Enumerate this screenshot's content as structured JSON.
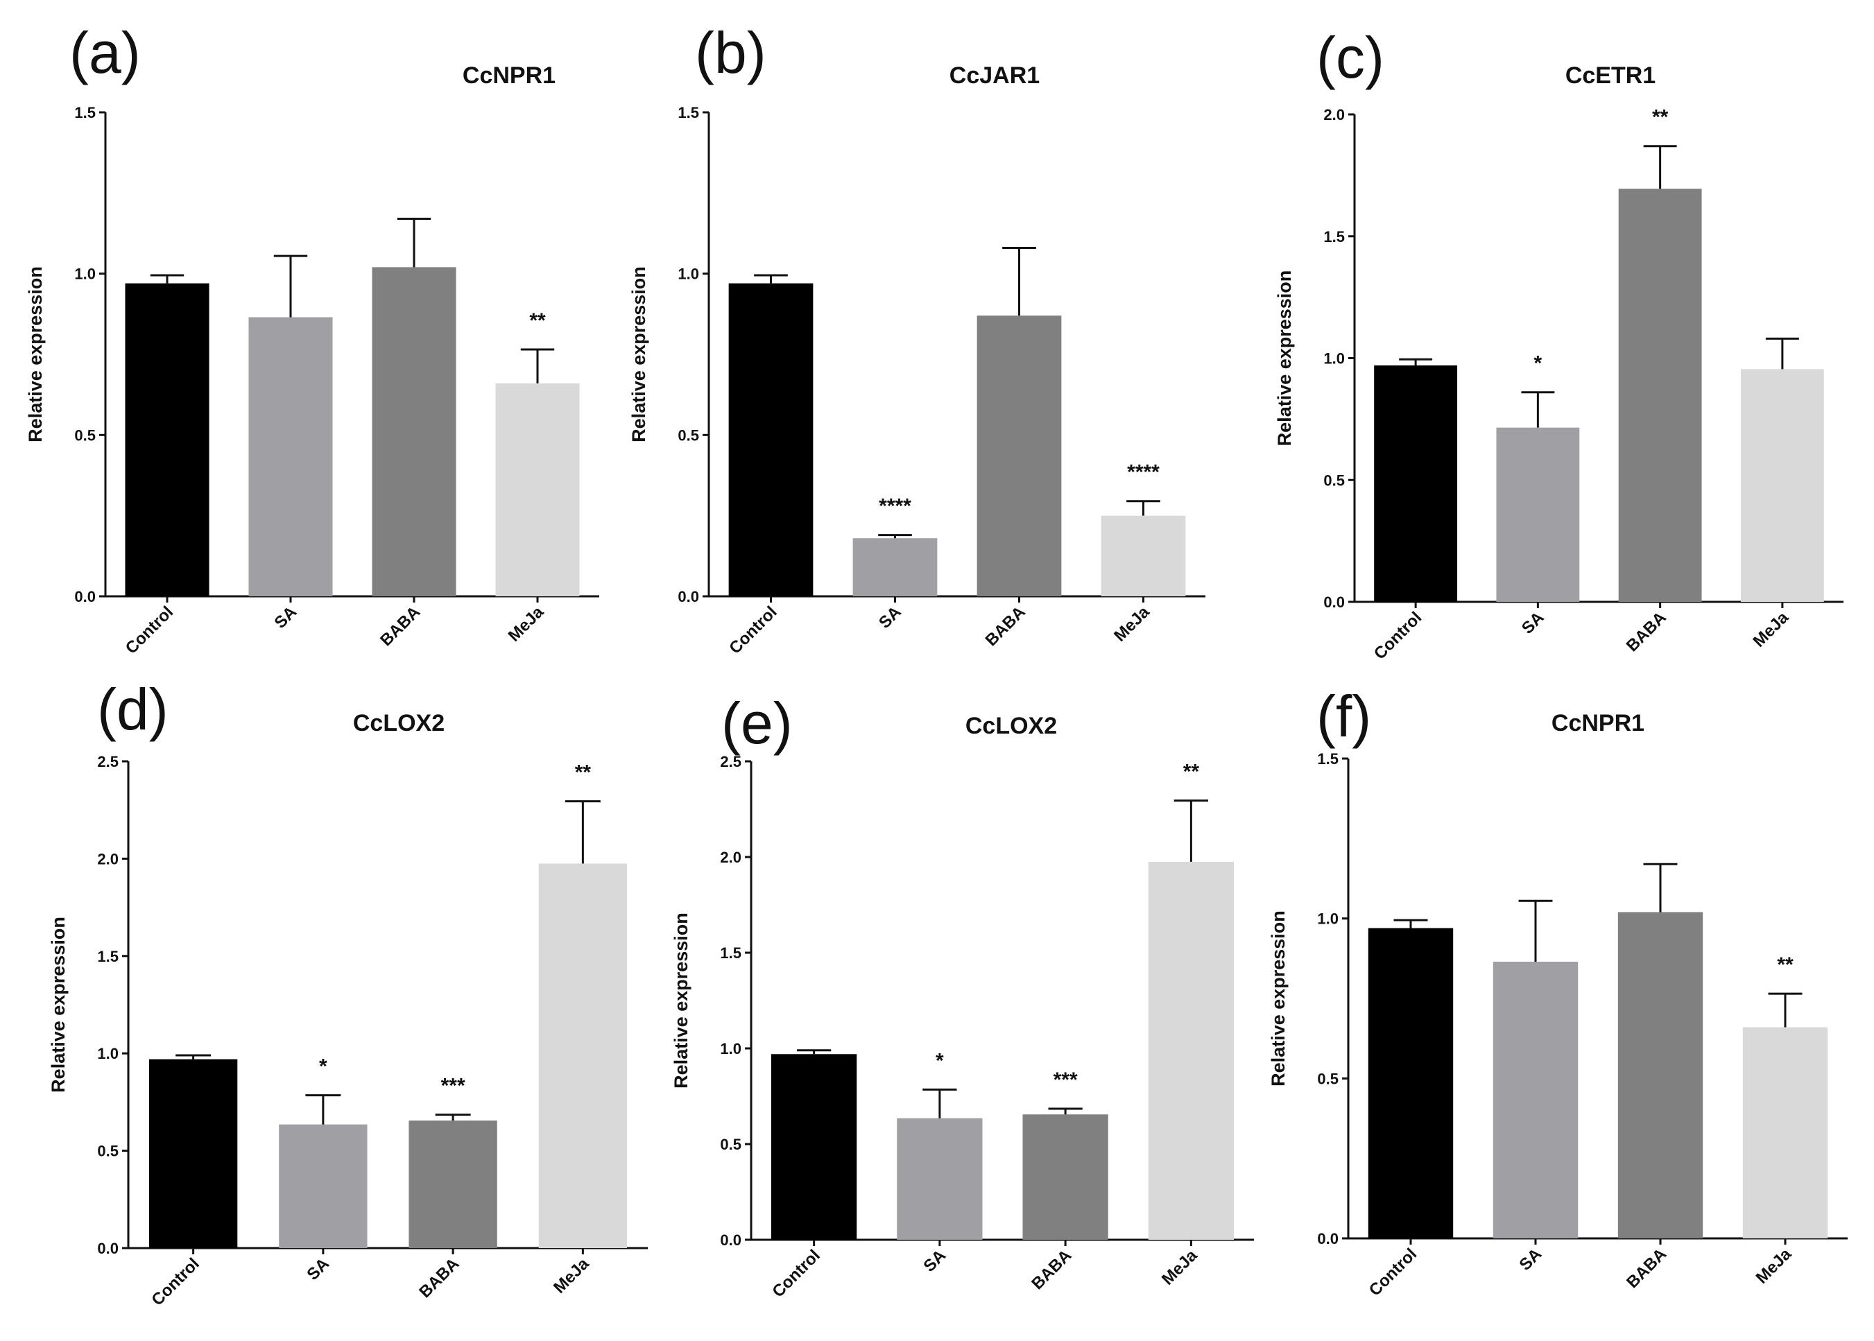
{
  "figure": {
    "bar_colors": [
      "#000000",
      "#a0a0a4",
      "#808080",
      "#d9d9d9"
    ]
  },
  "chart_data": [
    {
      "type": "bar",
      "panel": "(a)",
      "title": "CcNPR1",
      "ylabel": "Relative expression",
      "xlabel": "",
      "categories": [
        "Control",
        "SA",
        "BABA",
        "MeJa"
      ],
      "values": [
        0.97,
        0.865,
        1.02,
        0.66
      ],
      "errors": [
        0.025,
        0.19,
        0.15,
        0.105
      ],
      "significance": [
        "",
        "",
        "",
        "**"
      ],
      "ylim": [
        0,
        1.5
      ],
      "yticks": [
        "0.0",
        "0.5",
        "1.0",
        "1.5"
      ]
    },
    {
      "type": "bar",
      "panel": "(b)",
      "title": "CcJAR1",
      "ylabel": "Relative expression",
      "xlabel": "",
      "categories": [
        "Control",
        "SA",
        "BABA",
        "MeJa"
      ],
      "values": [
        0.97,
        0.18,
        0.87,
        0.25
      ],
      "errors": [
        0.025,
        0.01,
        0.21,
        0.045
      ],
      "significance": [
        "",
        "****",
        "",
        "****"
      ],
      "ylim": [
        0,
        1.5
      ],
      "yticks": [
        "0.0",
        "0.5",
        "1.0",
        "1.5"
      ]
    },
    {
      "type": "bar",
      "panel": "(c)",
      "title": "CcETR1",
      "ylabel": "Relative expression",
      "xlabel": "",
      "categories": [
        "Control",
        "SA",
        "BABA",
        "MeJa"
      ],
      "values": [
        0.97,
        0.715,
        1.695,
        0.955
      ],
      "errors": [
        0.025,
        0.145,
        0.175,
        0.125
      ],
      "significance": [
        "",
        "*",
        "**",
        ""
      ],
      "ylim": [
        0,
        2.0
      ],
      "yticks": [
        "0.0",
        "0.5",
        "1.0",
        "1.5",
        "2.0"
      ]
    },
    {
      "type": "bar",
      "panel": "(d)",
      "title": "CcLOX2",
      "ylabel": "Relative expression",
      "xlabel": "",
      "categories": [
        "Control",
        "SA",
        "BABA",
        "MeJa"
      ],
      "values": [
        0.97,
        0.635,
        0.655,
        1.975
      ],
      "errors": [
        0.02,
        0.15,
        0.03,
        0.32
      ],
      "significance": [
        "",
        "*",
        "***",
        "**"
      ],
      "ylim": [
        0,
        2.5
      ],
      "yticks": [
        "0.0",
        "0.5",
        "1.0",
        "1.5",
        "2.0",
        "2.5"
      ]
    },
    {
      "type": "bar",
      "panel": "(e)",
      "title": "CcLOX2",
      "ylabel": "Relative expression",
      "xlabel": "",
      "categories": [
        "Control",
        "SA",
        "BABA",
        "MeJa"
      ],
      "values": [
        0.97,
        0.635,
        0.655,
        1.975
      ],
      "errors": [
        0.02,
        0.15,
        0.03,
        0.32
      ],
      "significance": [
        "",
        "*",
        "***",
        "**"
      ],
      "ylim": [
        0,
        2.5
      ],
      "yticks": [
        "0.0",
        "0.5",
        "1.0",
        "1.5",
        "2.0",
        "2.5"
      ]
    },
    {
      "type": "bar",
      "panel": "(f)",
      "title": "CcNPR1",
      "ylabel": "Relative expression",
      "xlabel": "",
      "categories": [
        "Control",
        "SA",
        "BABA",
        "MeJa"
      ],
      "values": [
        0.97,
        0.865,
        1.02,
        0.66
      ],
      "errors": [
        0.025,
        0.19,
        0.15,
        0.105
      ],
      "significance": [
        "",
        "",
        "",
        "**"
      ],
      "ylim": [
        0,
        1.5
      ],
      "yticks": [
        "0.0",
        "0.5",
        "1.0",
        "1.5"
      ]
    }
  ]
}
